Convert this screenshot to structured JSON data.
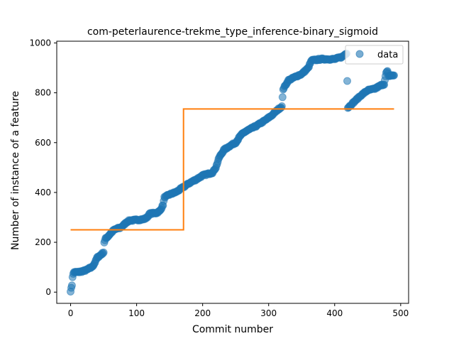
{
  "chart_data": {
    "type": "scatter",
    "title": "com-peterlaurence-trekme_type_inference-binary_sigmoid",
    "xlabel": "Commit number",
    "ylabel": "Number of instance of a feature",
    "xlim": [
      -21,
      512
    ],
    "ylim": [
      -45,
      1007
    ],
    "xticks": [
      0,
      100,
      200,
      300,
      400,
      500
    ],
    "yticks": [
      0,
      200,
      400,
      600,
      800,
      1000
    ],
    "legend": {
      "position": "upper-right",
      "entries": [
        "data"
      ]
    },
    "colors": {
      "data": "#1f77b4",
      "fit": "#ff7f0e"
    },
    "scatter_anchors": [
      [
        0,
        5
      ],
      [
        1,
        15
      ],
      [
        2,
        28
      ],
      [
        3,
        62
      ],
      [
        4,
        72
      ],
      [
        5,
        80
      ],
      [
        10,
        80
      ],
      [
        15,
        82
      ],
      [
        20,
        85
      ],
      [
        25,
        90
      ],
      [
        28,
        95
      ],
      [
        32,
        100
      ],
      [
        35,
        110
      ],
      [
        38,
        125
      ],
      [
        40,
        138
      ],
      [
        45,
        148
      ],
      [
        50,
        160
      ],
      [
        51,
        200
      ],
      [
        53,
        215
      ],
      [
        57,
        225
      ],
      [
        62,
        240
      ],
      [
        65,
        248
      ],
      [
        70,
        255
      ],
      [
        75,
        258
      ],
      [
        80,
        268
      ],
      [
        85,
        282
      ],
      [
        90,
        288
      ],
      [
        95,
        288
      ],
      [
        100,
        290
      ],
      [
        110,
        292
      ],
      [
        115,
        298
      ],
      [
        120,
        315
      ],
      [
        130,
        318
      ],
      [
        135,
        325
      ],
      [
        140,
        350
      ],
      [
        142,
        380
      ],
      [
        150,
        392
      ],
      [
        160,
        402
      ],
      [
        170,
        420
      ],
      [
        180,
        438
      ],
      [
        190,
        452
      ],
      [
        200,
        468
      ],
      [
        215,
        480
      ],
      [
        220,
        500
      ],
      [
        225,
        540
      ],
      [
        232,
        570
      ],
      [
        240,
        585
      ],
      [
        250,
        600
      ],
      [
        258,
        630
      ],
      [
        265,
        645
      ],
      [
        280,
        665
      ],
      [
        295,
        690
      ],
      [
        305,
        710
      ],
      [
        315,
        735
      ],
      [
        320,
        745
      ],
      [
        322,
        815
      ],
      [
        330,
        850
      ],
      [
        345,
        870
      ],
      [
        350,
        875
      ],
      [
        360,
        900
      ],
      [
        365,
        930
      ],
      [
        380,
        935
      ],
      [
        400,
        935
      ],
      [
        412,
        945
      ],
      [
        418,
        960
      ],
      [
        420,
        740
      ],
      [
        430,
        765
      ],
      [
        440,
        790
      ],
      [
        450,
        810
      ],
      [
        460,
        815
      ],
      [
        470,
        830
      ],
      [
        475,
        835
      ],
      [
        478,
        880
      ],
      [
        480,
        885
      ],
      [
        482,
        868
      ],
      [
        490,
        870
      ]
    ],
    "fit_line": {
      "x": [
        0,
        171,
        171,
        490
      ],
      "y": [
        250,
        250,
        735,
        735
      ]
    }
  }
}
